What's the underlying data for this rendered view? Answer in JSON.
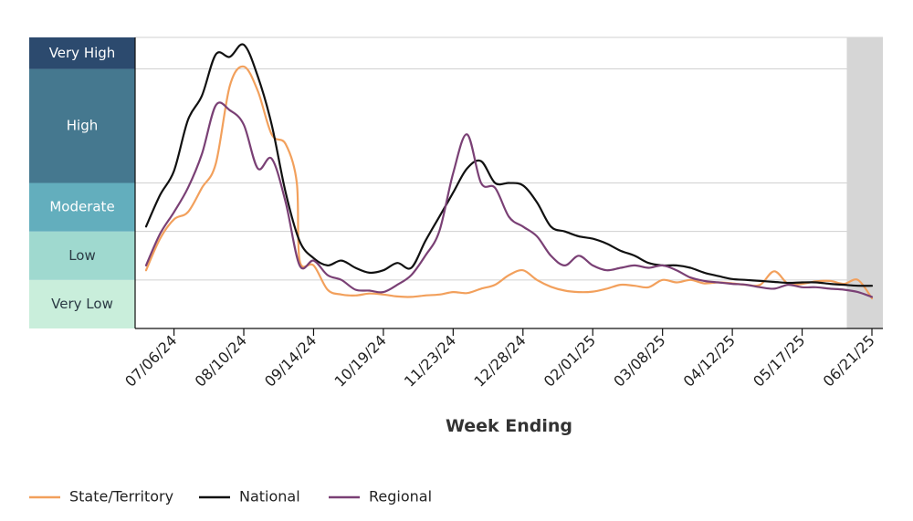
{
  "chart_data": {
    "type": "line",
    "title": "",
    "xlabel": "Week Ending",
    "ylabel": "",
    "ylim": [
      0,
      6
    ],
    "x_range": [
      0,
      52
    ],
    "x_ticks": [
      {
        "label": "07/06/24",
        "x": 2
      },
      {
        "label": "08/10/24",
        "x": 7
      },
      {
        "label": "09/14/24",
        "x": 12
      },
      {
        "label": "10/19/24",
        "x": 17
      },
      {
        "label": "11/23/24",
        "x": 22
      },
      {
        "label": "12/28/24",
        "x": 27
      },
      {
        "label": "02/01/25",
        "x": 32
      },
      {
        "label": "03/08/25",
        "x": 37
      },
      {
        "label": "04/12/25",
        "x": 42
      },
      {
        "label": "05/17/25",
        "x": 47
      },
      {
        "label": "06/21/25",
        "x": 52
      }
    ],
    "levels": [
      {
        "name": "Very Low",
        "from": 0,
        "to": 1,
        "color": "#c9eedb",
        "text_dark": true
      },
      {
        "name": "Low",
        "from": 1,
        "to": 2,
        "color": "#9fd9cf",
        "text_dark": true
      },
      {
        "name": "Moderate",
        "from": 2,
        "to": 3,
        "color": "#63aebd",
        "text_dark": false
      },
      {
        "name": "High",
        "from": 3,
        "to": 5.35,
        "color": "#45788f",
        "text_dark": false
      },
      {
        "name": "Very High",
        "from": 5.35,
        "to": 6,
        "color": "#2c4a6e",
        "text_dark": false
      }
    ],
    "shaded_region": {
      "from": 50.2,
      "to": 52
    },
    "series": [
      {
        "name": "State/Territory",
        "color": "#f2a05c",
        "x": [
          0,
          1,
          2,
          3,
          4,
          5,
          6,
          7,
          8,
          9,
          10,
          10.8,
          11,
          12,
          13,
          14,
          15,
          16,
          17,
          18,
          19,
          20,
          21,
          22,
          23,
          24,
          25,
          26,
          27,
          28,
          29,
          30,
          31,
          32,
          33,
          34,
          35,
          36,
          37,
          38,
          39,
          40,
          41,
          42,
          43,
          44,
          45,
          46,
          47,
          48,
          49,
          50,
          51,
          52
        ],
        "values": [
          1.2,
          1.85,
          2.25,
          2.4,
          2.9,
          3.4,
          5.0,
          5.4,
          4.9,
          4.0,
          3.8,
          3.0,
          1.4,
          1.3,
          0.8,
          0.7,
          0.68,
          0.72,
          0.7,
          0.66,
          0.65,
          0.68,
          0.7,
          0.75,
          0.73,
          0.82,
          0.9,
          1.1,
          1.2,
          1.0,
          0.86,
          0.78,
          0.75,
          0.76,
          0.82,
          0.9,
          0.88,
          0.85,
          1.0,
          0.95,
          1.0,
          0.93,
          0.95,
          0.93,
          0.9,
          0.9,
          1.18,
          0.92,
          0.92,
          0.97,
          0.98,
          0.92,
          1.0,
          0.62
        ]
      },
      {
        "name": "National",
        "color": "#111111",
        "x": [
          0,
          1,
          2,
          3,
          4,
          5,
          6,
          7,
          8,
          9,
          10,
          11,
          12,
          13,
          14,
          15,
          16,
          17,
          18,
          19,
          20,
          21,
          22,
          23,
          24,
          25,
          26,
          27,
          28,
          29,
          30,
          31,
          32,
          33,
          34,
          35,
          36,
          37,
          38,
          39,
          40,
          41,
          42,
          43,
          44,
          45,
          46,
          47,
          48,
          49,
          50,
          51,
          52
        ],
        "values": [
          2.1,
          2.75,
          3.25,
          4.3,
          4.8,
          5.65,
          5.6,
          5.85,
          5.2,
          4.2,
          2.8,
          1.8,
          1.45,
          1.3,
          1.4,
          1.25,
          1.15,
          1.2,
          1.35,
          1.25,
          1.8,
          2.3,
          2.8,
          3.3,
          3.45,
          3.0,
          3.0,
          2.95,
          2.6,
          2.1,
          2.0,
          1.9,
          1.85,
          1.75,
          1.6,
          1.5,
          1.35,
          1.3,
          1.3,
          1.25,
          1.15,
          1.08,
          1.02,
          1.0,
          0.98,
          0.96,
          0.94,
          0.95,
          0.95,
          0.92,
          0.9,
          0.88,
          0.88
        ]
      },
      {
        "name": "Regional",
        "color": "#7a4075",
        "x": [
          0,
          1,
          2,
          3,
          4,
          5,
          6,
          7,
          8,
          9,
          10,
          11,
          12,
          13,
          14,
          15,
          16,
          17,
          18,
          19,
          20,
          21,
          22,
          23,
          24,
          25,
          26,
          27,
          28,
          29,
          30,
          31,
          32,
          33,
          34,
          35,
          36,
          37,
          38,
          39,
          40,
          41,
          42,
          43,
          44,
          45,
          46,
          47,
          48,
          49,
          50,
          51,
          52
        ],
        "values": [
          1.3,
          1.95,
          2.4,
          2.9,
          3.6,
          4.6,
          4.5,
          4.2,
          3.3,
          3.5,
          2.6,
          1.3,
          1.4,
          1.1,
          1.0,
          0.8,
          0.78,
          0.75,
          0.9,
          1.1,
          1.5,
          2.0,
          3.2,
          4.0,
          3.0,
          2.9,
          2.3,
          2.1,
          1.9,
          1.5,
          1.3,
          1.5,
          1.3,
          1.2,
          1.25,
          1.3,
          1.25,
          1.3,
          1.2,
          1.05,
          0.98,
          0.95,
          0.92,
          0.9,
          0.85,
          0.82,
          0.9,
          0.85,
          0.85,
          0.82,
          0.8,
          0.75,
          0.65
        ]
      }
    ]
  }
}
